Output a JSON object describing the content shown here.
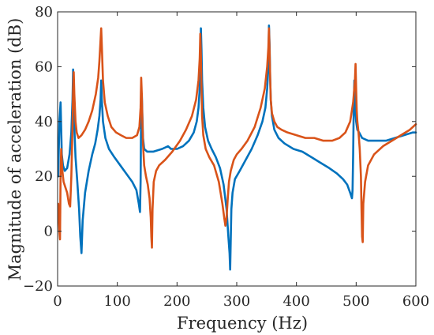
{
  "chart_data": {
    "type": "line",
    "title": "",
    "xlabel": "Frequency (Hz)",
    "ylabel": "Magnitude of acceleration (dB)",
    "xlim": [
      0,
      600
    ],
    "ylim": [
      -20,
      80
    ],
    "xticks": [
      0,
      100,
      200,
      300,
      400,
      500,
      600
    ],
    "yticks": [
      -20,
      0,
      20,
      40,
      60,
      80
    ],
    "grid": false,
    "legend": "none",
    "series": [
      {
        "color": "#0072BD",
        "x": [
          1,
          3,
          5,
          7,
          9,
          12,
          16,
          20,
          23,
          25,
          26,
          27,
          28,
          30,
          33,
          36,
          38,
          40,
          42,
          46,
          52,
          58,
          63,
          67,
          70,
          72,
          73,
          74,
          76,
          80,
          86,
          95,
          105,
          115,
          125,
          132,
          136,
          138,
          139,
          140,
          141,
          142,
          143,
          145,
          150,
          160,
          175,
          185,
          190,
          200,
          210,
          220,
          228,
          233,
          236,
          238,
          239,
          240,
          241,
          242,
          244,
          247,
          252,
          258,
          265,
          272,
          278,
          283,
          286,
          288,
          289,
          290,
          291,
          293,
          297,
          305,
          315,
          325,
          335,
          343,
          348,
          351,
          353,
          354,
          355,
          356,
          357,
          359,
          363,
          370,
          380,
          395,
          410,
          425,
          440,
          455,
          468,
          478,
          485,
          490,
          493,
          494,
          495,
          496,
          497,
          498,
          499,
          500,
          502,
          505,
          510,
          520,
          535,
          550,
          565,
          580,
          595,
          600
        ],
        "y": [
          20,
          40,
          47,
          28,
          24,
          22,
          23,
          28,
          36,
          48,
          59,
          52,
          38,
          27,
          18,
          8,
          -2,
          -8,
          4,
          14,
          22,
          28,
          32,
          37,
          42,
          48,
          55,
          48,
          40,
          34,
          30,
          27,
          24,
          21,
          18,
          15,
          10,
          7,
          18,
          45,
          50,
          42,
          34,
          30,
          29,
          29,
          30,
          31,
          30,
          30,
          31,
          33,
          36,
          40,
          45,
          52,
          60,
          74,
          66,
          55,
          45,
          38,
          33,
          30,
          27,
          23,
          17,
          8,
          -2,
          -8,
          -14,
          -3,
          8,
          14,
          19,
          22,
          26,
          30,
          35,
          40,
          45,
          52,
          60,
          75,
          68,
          56,
          48,
          42,
          37,
          34,
          32,
          30,
          29,
          27,
          25,
          23,
          21,
          19,
          17,
          14,
          12,
          15,
          28,
          46,
          55,
          50,
          43,
          40,
          37,
          36,
          34,
          33,
          33,
          33,
          34,
          35,
          36,
          36
        ]
      },
      {
        "color": "#D95319",
        "x": [
          1,
          3,
          4,
          5,
          6,
          8,
          10,
          13,
          16,
          19,
          21,
          23,
          25,
          26,
          27,
          28,
          30,
          32,
          35,
          40,
          46,
          52,
          58,
          64,
          68,
          70,
          72,
          73,
          74,
          76,
          79,
          84,
          90,
          98,
          106,
          115,
          125,
          133,
          137,
          139,
          140,
          141,
          142,
          143,
          145,
          148,
          151,
          154,
          156,
          157,
          158,
          159,
          161,
          165,
          170,
          180,
          192,
          205,
          215,
          225,
          232,
          236,
          238,
          239,
          240,
          241,
          242,
          244,
          248,
          254,
          262,
          270,
          276,
          279,
          281,
          283,
          285,
          287,
          290,
          295,
          300,
          308,
          318,
          330,
          340,
          347,
          351,
          353,
          354,
          355,
          356,
          357,
          359,
          363,
          368,
          375,
          385,
          400,
          415,
          430,
          445,
          460,
          472,
          482,
          490,
          495,
          498,
          499,
          500,
          501,
          502,
          504,
          506,
          508,
          509,
          510,
          511,
          512,
          515,
          520,
          530,
          545,
          560,
          575,
          590,
          600
        ],
        "y": [
          10,
          0,
          -3,
          20,
          30,
          22,
          18,
          16,
          14,
          10,
          9,
          20,
          38,
          52,
          58,
          50,
          40,
          36,
          34,
          35,
          37,
          40,
          44,
          50,
          56,
          62,
          70,
          74,
          68,
          55,
          47,
          42,
          38,
          36,
          35,
          34,
          34,
          35,
          38,
          45,
          56,
          50,
          40,
          32,
          24,
          20,
          17,
          12,
          5,
          -2,
          -6,
          8,
          18,
          22,
          24,
          26,
          29,
          33,
          37,
          42,
          48,
          55,
          63,
          72,
          64,
          52,
          42,
          35,
          30,
          27,
          24,
          18,
          10,
          5,
          2,
          5,
          12,
          18,
          22,
          26,
          28,
          30,
          33,
          38,
          45,
          52,
          60,
          67,
          74,
          66,
          56,
          48,
          43,
          40,
          38,
          37,
          36,
          35,
          34,
          34,
          33,
          33,
          34,
          36,
          40,
          47,
          55,
          61,
          52,
          44,
          40,
          36,
          30,
          20,
          8,
          -2,
          -4,
          10,
          18,
          24,
          28,
          31,
          33,
          35,
          37,
          39
        ]
      }
    ]
  }
}
